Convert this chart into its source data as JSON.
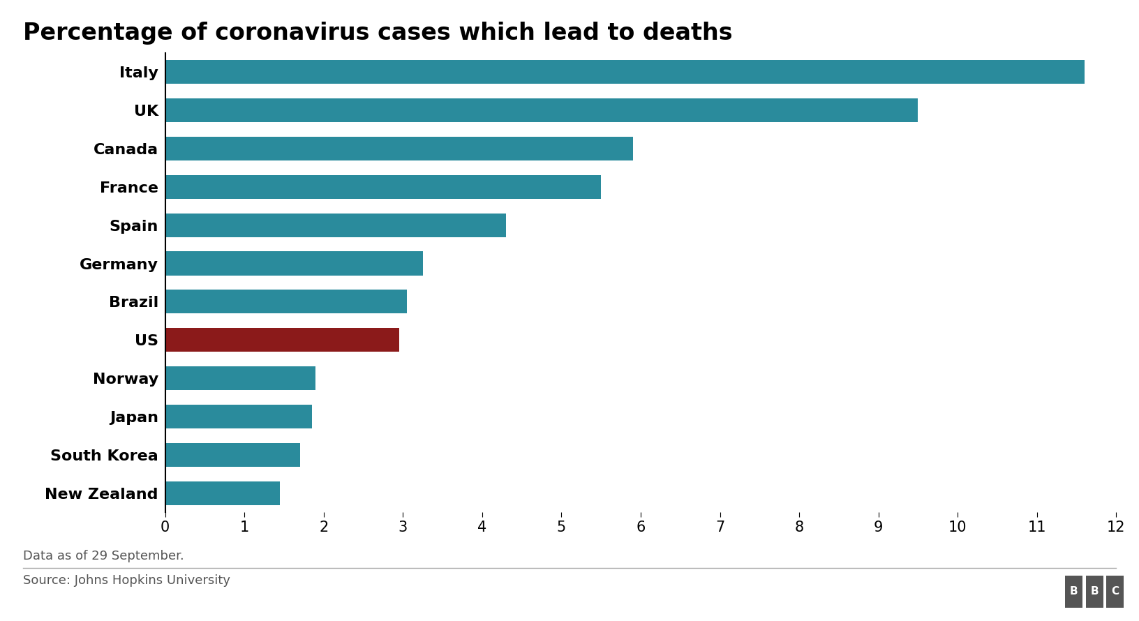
{
  "title": "Percentage of coronavirus cases which lead to deaths",
  "categories": [
    "Italy",
    "UK",
    "Canada",
    "France",
    "Spain",
    "Germany",
    "Brazil",
    "US",
    "Norway",
    "Japan",
    "South Korea",
    "New Zealand"
  ],
  "values": [
    11.6,
    9.5,
    5.9,
    5.5,
    4.3,
    3.25,
    3.05,
    2.95,
    1.9,
    1.85,
    1.7,
    1.45
  ],
  "bar_colors": [
    "#2a8b9c",
    "#2a8b9c",
    "#2a8b9c",
    "#2a8b9c",
    "#2a8b9c",
    "#2a8b9c",
    "#2a8b9c",
    "#8b1a1a",
    "#2a8b9c",
    "#2a8b9c",
    "#2a8b9c",
    "#2a8b9c"
  ],
  "xlim": [
    0,
    12
  ],
  "xticks": [
    0,
    1,
    2,
    3,
    4,
    5,
    6,
    7,
    8,
    9,
    10,
    11,
    12
  ],
  "footnote": "Data as of 29 September.",
  "source": "Source: Johns Hopkins University",
  "background_color": "#ffffff",
  "title_fontsize": 24,
  "label_fontsize": 16,
  "tick_fontsize": 15,
  "footnote_fontsize": 13,
  "source_fontsize": 13,
  "bar_height": 0.62
}
